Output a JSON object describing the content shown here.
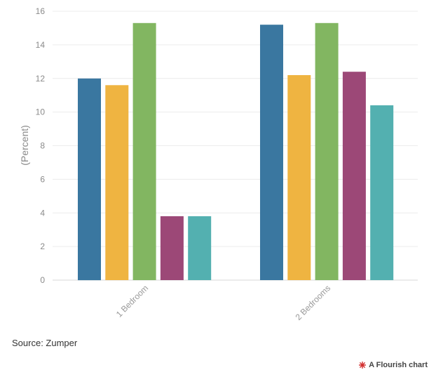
{
  "chart_data": {
    "type": "bar",
    "categories": [
      "1 Bedroom",
      "2 Bedrooms"
    ],
    "series": [
      {
        "values": [
          12.0,
          15.2
        ],
        "color": "#3a77a0"
      },
      {
        "values": [
          11.6,
          12.2
        ],
        "color": "#efb441"
      },
      {
        "values": [
          15.3,
          15.3
        ],
        "color": "#82b661"
      },
      {
        "values": [
          3.8,
          12.4
        ],
        "color": "#9c4877"
      },
      {
        "values": [
          3.8,
          10.4
        ],
        "color": "#53b0b0"
      }
    ],
    "ylabel": "(Percent)",
    "ylim": [
      0,
      16
    ],
    "yticks": [
      "0",
      "2",
      "4",
      "6",
      "8",
      "10",
      "12",
      "14",
      "16"
    ],
    "grid": true
  },
  "footer": {
    "source": "Source: Zumper",
    "credit": "A Flourish chart",
    "credit_icon": "flourish-logo-icon",
    "credit_color": "#d22d2d"
  }
}
